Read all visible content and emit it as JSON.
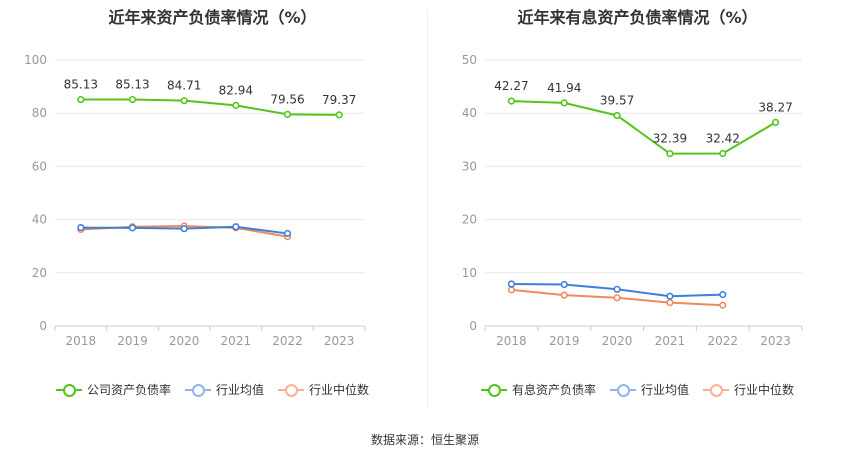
{
  "source": "数据来源：恒生聚源",
  "chart_data": [
    {
      "type": "line",
      "title": "近年来资产负债率情况（%）",
      "categories": [
        "2018",
        "2019",
        "2020",
        "2021",
        "2022",
        "2023"
      ],
      "ylim": [
        0,
        100
      ],
      "yticks": [
        0,
        20,
        40,
        60,
        80,
        100
      ],
      "series": [
        {
          "name": "公司资产负债率",
          "color": "#52c41a",
          "values": [
            85.13,
            85.13,
            84.71,
            82.94,
            79.56,
            79.37
          ],
          "show_labels": true
        },
        {
          "name": "行业均值",
          "color": "#3d7fd9",
          "legend_color": "#8fb4ee",
          "values": [
            37.0,
            36.9,
            36.6,
            37.3,
            34.8,
            null
          ],
          "show_labels": false
        },
        {
          "name": "行业中位数",
          "color": "#f08a5d",
          "legend_color": "#f5b39a",
          "values": [
            36.3,
            37.3,
            37.6,
            36.9,
            33.6,
            null
          ],
          "show_labels": false
        }
      ],
      "grid": true,
      "legend_position": "bottom"
    },
    {
      "type": "line",
      "title": "近年来有息资产负债率情况（%）",
      "categories": [
        "2018",
        "2019",
        "2020",
        "2021",
        "2022",
        "2023"
      ],
      "ylim": [
        0,
        50
      ],
      "yticks": [
        0,
        10,
        20,
        30,
        40,
        50
      ],
      "series": [
        {
          "name": "有息资产负债率",
          "color": "#52c41a",
          "values": [
            42.27,
            41.94,
            39.57,
            32.39,
            32.42,
            38.27
          ],
          "show_labels": true
        },
        {
          "name": "行业均值",
          "color": "#3d7fd9",
          "legend_color": "#8fb4ee",
          "values": [
            7.9,
            7.8,
            6.9,
            5.6,
            5.9,
            null
          ],
          "show_labels": false
        },
        {
          "name": "行业中位数",
          "color": "#f08a5d",
          "legend_color": "#f5b39a",
          "values": [
            6.8,
            5.8,
            5.3,
            4.4,
            3.9,
            null
          ],
          "show_labels": false
        }
      ],
      "grid": true,
      "legend_position": "bottom"
    }
  ]
}
